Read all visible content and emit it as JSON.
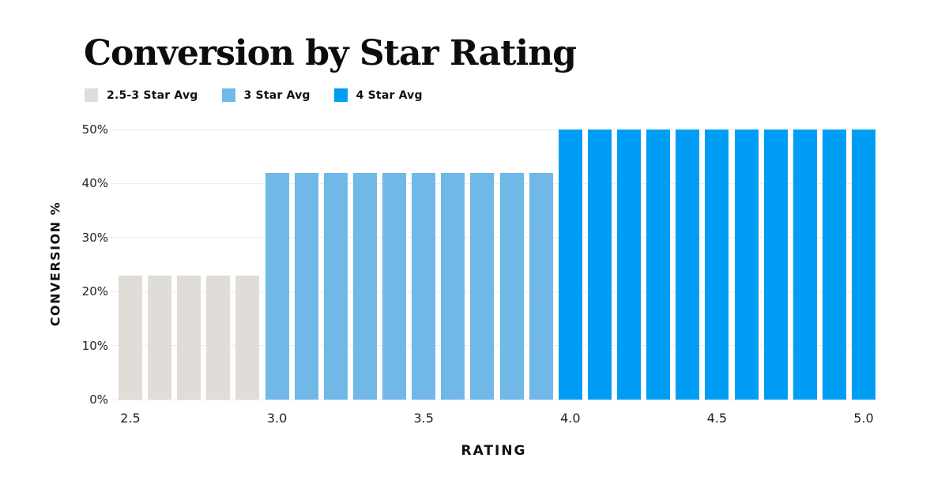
{
  "colors": {
    "background": "#ffffff",
    "title_text": "#0d0d0d",
    "axis_text": "#222222",
    "gridline": "#ececec",
    "series_gray": "#e0dcd7",
    "series_light_blue": "#6fb8e8",
    "series_azure": "#009df5"
  },
  "chart_data": {
    "type": "bar",
    "title": "Conversion by Star Rating",
    "xlabel": "RATING",
    "ylabel": "CONVERSION %",
    "xlim": [
      2.5,
      5.0
    ],
    "ylim": [
      0,
      50
    ],
    "grid": true,
    "legend_position": "top-left",
    "value_unit": "percent",
    "yticks": [
      {
        "value": 0,
        "label": "0%"
      },
      {
        "value": 10,
        "label": "10%"
      },
      {
        "value": 20,
        "label": "20%"
      },
      {
        "value": 30,
        "label": "30%"
      },
      {
        "value": 40,
        "label": "40%"
      },
      {
        "value": 50,
        "label": "50%"
      }
    ],
    "xticks": [
      {
        "value": 2.5,
        "label": "2.5"
      },
      {
        "value": 3.0,
        "label": "3.0"
      },
      {
        "value": 3.5,
        "label": "3.5"
      },
      {
        "value": 4.0,
        "label": "4.0"
      },
      {
        "value": 4.5,
        "label": "4.5"
      },
      {
        "value": 5.0,
        "label": "5.0"
      }
    ],
    "series": [
      {
        "name": "2.5-3 Star Avg",
        "color": "#e0dcd7",
        "x": [
          2.5,
          2.6,
          2.7,
          2.8,
          2.9
        ],
        "values": [
          23,
          23,
          23,
          23,
          23
        ]
      },
      {
        "name": "3 Star Avg",
        "color": "#6fb8e8",
        "x": [
          3.0,
          3.1,
          3.2,
          3.3,
          3.4,
          3.5,
          3.6,
          3.7,
          3.8,
          3.9
        ],
        "values": [
          42,
          42,
          42,
          42,
          42,
          42,
          42,
          42,
          42,
          42
        ]
      },
      {
        "name": "4 Star Avg",
        "color": "#009df5",
        "x": [
          4.0,
          4.1,
          4.2,
          4.3,
          4.4,
          4.5,
          4.6,
          4.7,
          4.8,
          4.9,
          5.0
        ],
        "values": [
          50,
          50,
          50,
          50,
          50,
          50,
          50,
          50,
          50,
          50,
          50
        ]
      }
    ]
  }
}
